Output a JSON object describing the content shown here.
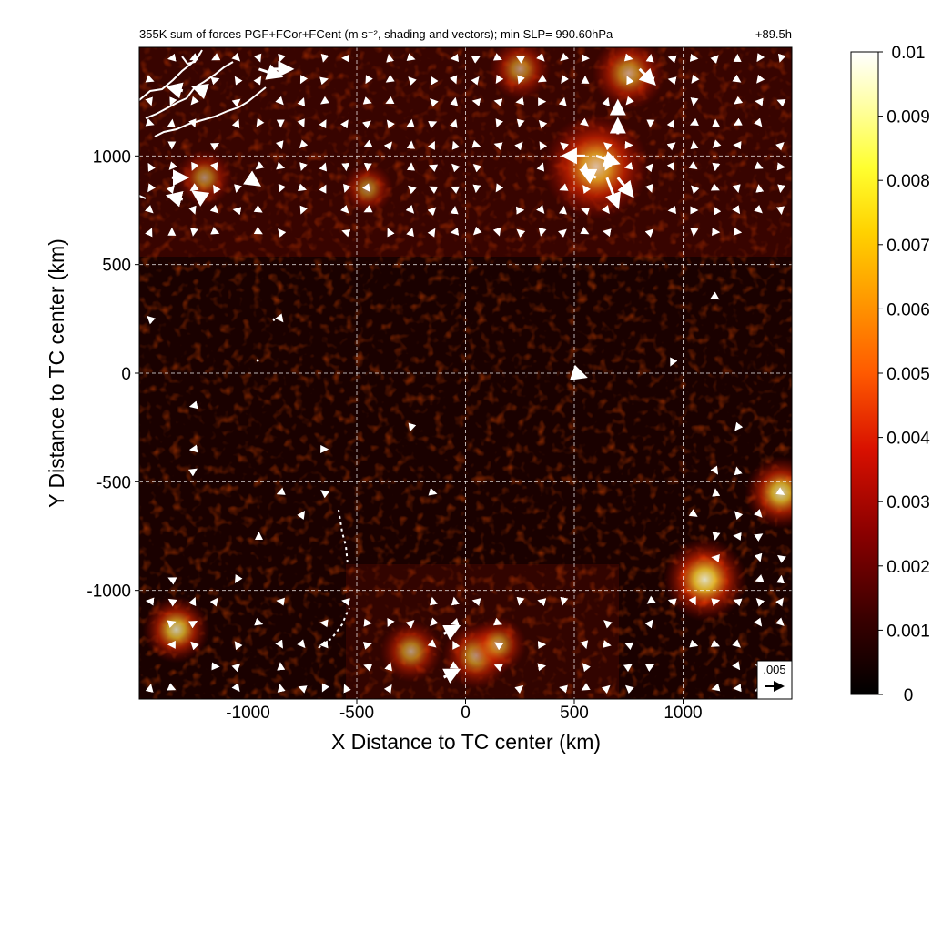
{
  "chart_data": {
    "type": "heatmap",
    "title": "355K sum of forces PGF+FCor+FCent (m s⁻², shading and vectors); min SLP= 990.60hPa",
    "forecast_hour": "+89.5h",
    "xlabel": "X Distance to TC center (km)",
    "ylabel": "Y Distance to TC center (km)",
    "xlim": [
      -1500,
      1500
    ],
    "ylim": [
      -1500,
      1500
    ],
    "xticks": [
      -1000,
      -500,
      0,
      500,
      1000
    ],
    "yticks": [
      1000,
      500,
      0,
      -500,
      -1000
    ],
    "grid": true,
    "colorbar": {
      "min": 0,
      "max": 0.01,
      "ticks": [
        "0.01",
        "0.009",
        "0.008",
        "0.007",
        "0.006",
        "0.005",
        "0.004",
        "0.003",
        "0.002",
        "0.001",
        "0"
      ],
      "colormap": "black-red-yellow-white (hot)"
    },
    "reference_vector": {
      "label": ".005",
      "value": 0.005
    },
    "hotspots": [
      {
        "x": 600,
        "y": 950,
        "intensity": 0.008
      },
      {
        "x": 750,
        "y": 1380,
        "intensity": 0.005
      },
      {
        "x": 250,
        "y": 1400,
        "intensity": 0.004
      },
      {
        "x": -1200,
        "y": 900,
        "intensity": 0.0035
      },
      {
        "x": -450,
        "y": 850,
        "intensity": 0.003
      },
      {
        "x": 1100,
        "y": -950,
        "intensity": 0.006
      },
      {
        "x": 1450,
        "y": -550,
        "intensity": 0.005
      },
      {
        "x": -1330,
        "y": -1180,
        "intensity": 0.0045
      },
      {
        "x": 50,
        "y": -1300,
        "intensity": 0.0045
      },
      {
        "x": -250,
        "y": -1280,
        "intensity": 0.004
      },
      {
        "x": 150,
        "y": -1250,
        "intensity": 0.0035
      }
    ],
    "vectors": [
      {
        "x": -950,
        "y": 1400,
        "u": 0.006,
        "v": -0.002
      },
      {
        "x": -900,
        "y": 1400,
        "u": 0.006,
        "v": 0.0
      },
      {
        "x": -1300,
        "y": 1300,
        "u": -0.004,
        "v": 0.001
      },
      {
        "x": -1200,
        "y": 1300,
        "u": -0.003,
        "v": 0.001
      },
      {
        "x": -1350,
        "y": 900,
        "u": 0.004,
        "v": 0.0
      },
      {
        "x": -1300,
        "y": 800,
        "u": -0.004,
        "v": 0.001
      },
      {
        "x": -1200,
        "y": 800,
        "u": -0.003,
        "v": 0.002
      },
      {
        "x": -1000,
        "y": 900,
        "u": 0.003,
        "v": -0.002
      },
      {
        "x": 550,
        "y": 1000,
        "u": -0.006,
        "v": 0.0
      },
      {
        "x": 600,
        "y": 1000,
        "u": 0.006,
        "v": -0.002
      },
      {
        "x": 650,
        "y": 900,
        "u": 0.003,
        "v": -0.008
      },
      {
        "x": 700,
        "y": 900,
        "u": 0.004,
        "v": -0.005
      },
      {
        "x": 600,
        "y": 900,
        "u": -0.004,
        "v": 0.002
      },
      {
        "x": 800,
        "y": 1400,
        "u": 0.004,
        "v": -0.004
      },
      {
        "x": 700,
        "y": 1100,
        "u": 0.0,
        "v": 0.004
      },
      {
        "x": 700,
        "y": 1200,
        "u": 0.0,
        "v": 0.003
      },
      {
        "x": -100,
        "y": -1200,
        "u": 0.004,
        "v": 0.002
      },
      {
        "x": -100,
        "y": -1400,
        "u": 0.004,
        "v": 0.002
      },
      {
        "x": 500,
        "y": 0,
        "u": 0.003,
        "v": -0.001
      }
    ],
    "small_arrows_grid_spacing_km": 100
  }
}
